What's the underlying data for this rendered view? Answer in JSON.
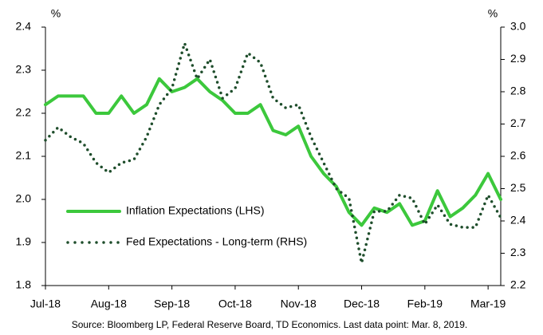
{
  "chart_data": {
    "type": "line",
    "y_label": "%",
    "y2_label": "%",
    "categories": [
      "Jul-18",
      null,
      null,
      null,
      null,
      "Aug-18",
      null,
      null,
      null,
      null,
      "Sep-18",
      null,
      null,
      null,
      null,
      "Oct-18",
      null,
      null,
      null,
      null,
      "Nov-18",
      null,
      null,
      null,
      null,
      "Dec-18",
      null,
      null,
      null,
      null,
      "Feb-19",
      null,
      null,
      null,
      null,
      "Mar-19",
      null
    ],
    "series": [
      {
        "name": "Inflation Expectations (LHS)",
        "color": "#3cc83c",
        "axis": "y",
        "values": [
          2.22,
          2.24,
          2.24,
          2.24,
          2.2,
          2.2,
          2.24,
          2.2,
          2.22,
          2.28,
          2.25,
          2.26,
          2.28,
          2.25,
          2.23,
          2.2,
          2.2,
          2.22,
          2.16,
          2.15,
          2.17,
          2.1,
          2.06,
          2.03,
          1.97,
          1.94,
          1.98,
          1.97,
          1.99,
          1.94,
          1.95,
          2.02,
          1.96,
          1.98,
          2.01,
          2.06,
          2.0
        ]
      },
      {
        "name": "Fed Expectations - Long-term (RHS)",
        "color": "#1e4d2b",
        "axis": "y2",
        "values": [
          2.65,
          2.69,
          2.66,
          2.64,
          2.58,
          2.55,
          2.58,
          2.59,
          2.66,
          2.76,
          2.81,
          2.95,
          2.84,
          2.9,
          2.78,
          2.81,
          2.92,
          2.89,
          2.78,
          2.75,
          2.76,
          2.66,
          2.58,
          2.5,
          2.47,
          2.27,
          2.43,
          2.43,
          2.48,
          2.47,
          2.39,
          2.45,
          2.39,
          2.38,
          2.38,
          2.48,
          2.41
        ]
      }
    ],
    "ylim": [
      1.8,
      2.4
    ],
    "yticks": [
      1.8,
      1.9,
      {
        "value": 2.0,
        "label": "2.0"
      },
      2.1,
      2.2,
      2.3,
      2.4
    ],
    "y2lim": [
      2.2,
      3.0
    ],
    "y2ticks": [
      2.2,
      2.3,
      2.4,
      2.5,
      2.6,
      2.7,
      2.8,
      2.9,
      {
        "value": 3.0,
        "label": "3.0"
      }
    ],
    "grid": false,
    "legend": "lower left",
    "source": "Source: Bloomberg LP, Federal Reserve Board, TD Economics. Last data point: Mar. 8, 2019."
  }
}
